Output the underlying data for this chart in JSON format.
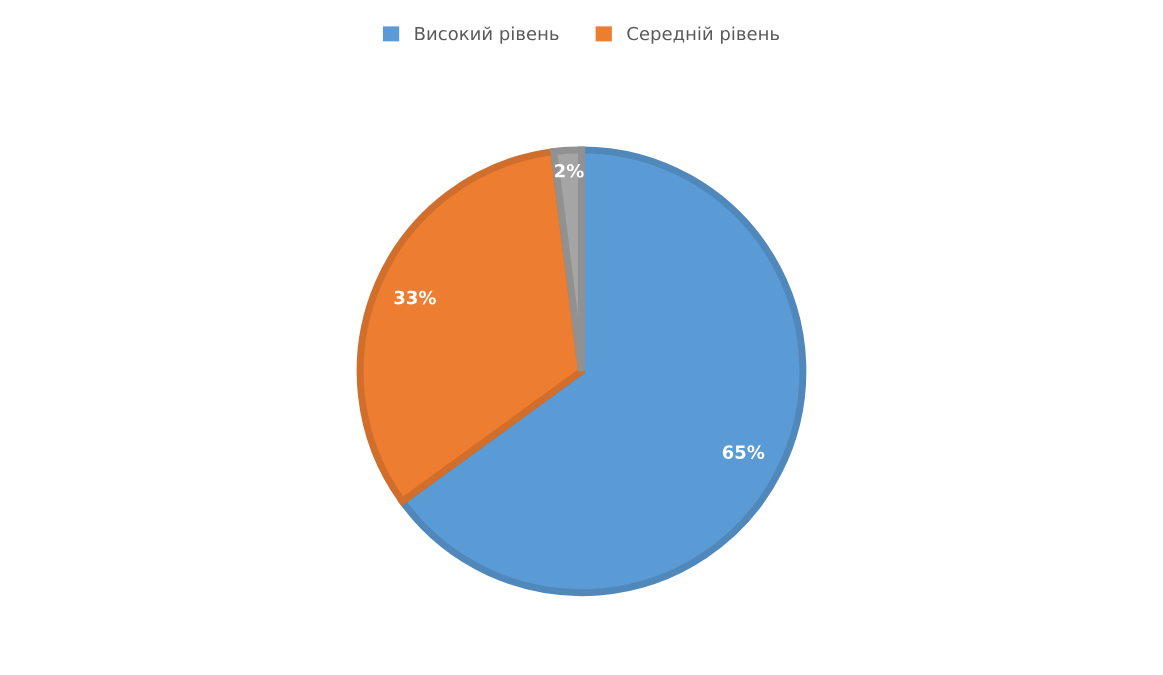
{
  "chart_data": {
    "type": "pie",
    "categories": [
      "Високий рівень",
      "Середній рівень",
      null
    ],
    "values": [
      65,
      33,
      2
    ],
    "colors": [
      "#5b9bd5",
      "#ed7d31",
      "#a5a5a5"
    ],
    "value_labels": [
      "65%",
      "33%",
      "2%"
    ],
    "legend": "top"
  }
}
